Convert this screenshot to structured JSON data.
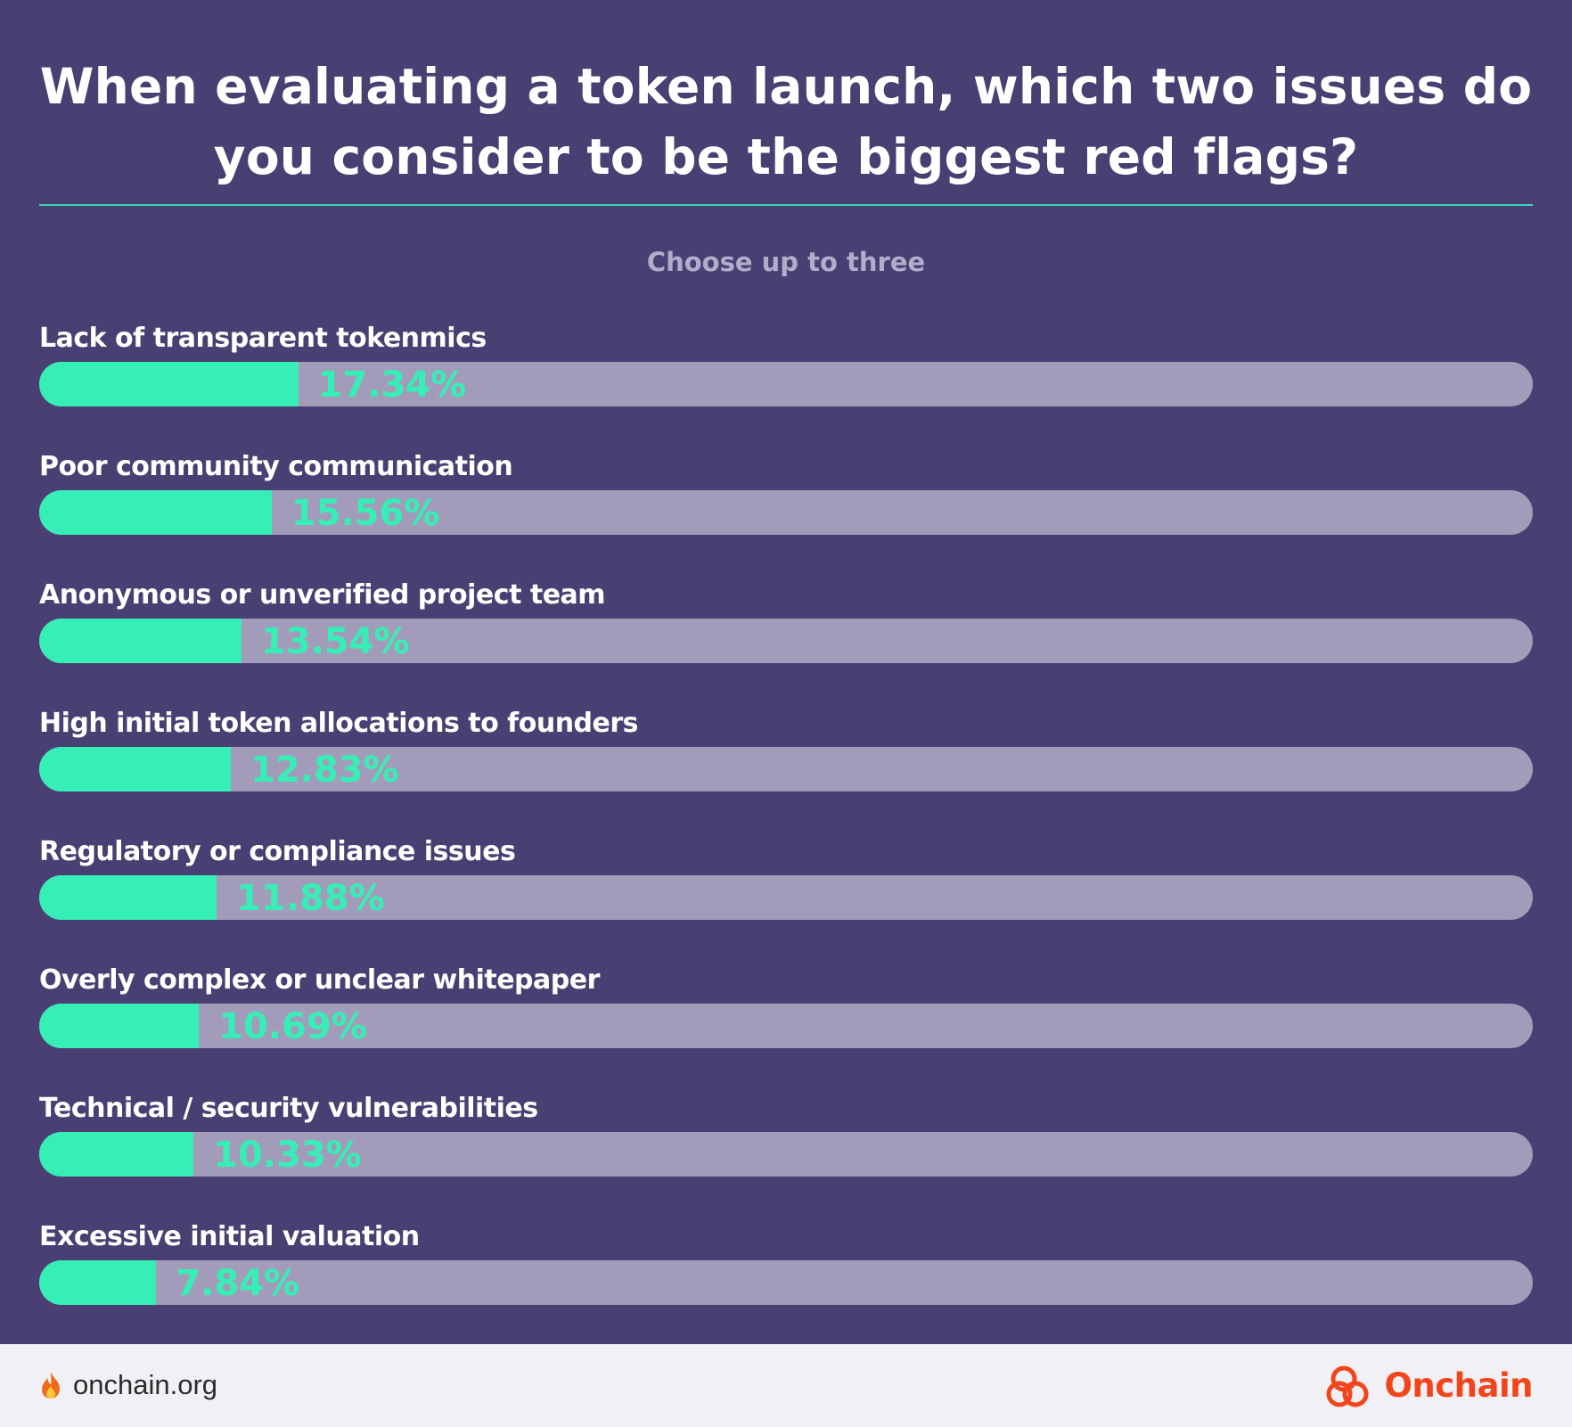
{
  "title_line1": "When evaluating a token launch, which two issues do",
  "title_line2": "you consider to be the biggest red flags?",
  "subtitle": "Choose up to three",
  "colors": {
    "background": "#4a3f72",
    "bar_fill": "#36efb6",
    "bar_track": "#a29cba",
    "rule": "#3ad6b8",
    "footer_bg": "#f1f0f4",
    "brand": "#f2451c"
  },
  "chart_data": {
    "type": "bar",
    "orientation": "horizontal",
    "unit": "%",
    "xlim": [
      0,
      100
    ],
    "grid": false,
    "categories": [
      "Lack of transparent tokenmics",
      "Poor community communication",
      "Anonymous or unverified project team",
      "High initial token allocations to founders",
      "Regulatory or compliance issues",
      "Overly complex or unclear whitepaper",
      "Technical / security vulnerabilities",
      "Excessive initial valuation"
    ],
    "values": [
      17.34,
      15.56,
      13.54,
      12.83,
      11.88,
      10.69,
      10.33,
      7.84
    ],
    "value_labels": [
      "17.34%",
      "15.56%",
      "13.54%",
      "12.83%",
      "11.88%",
      "10.69%",
      "10.33%",
      "7.84%"
    ]
  },
  "footer": {
    "url": "onchain.org",
    "flame_icon": "flame-icon",
    "brand_name": "Onchain",
    "brand_icon": "onchain-logo-icon"
  }
}
